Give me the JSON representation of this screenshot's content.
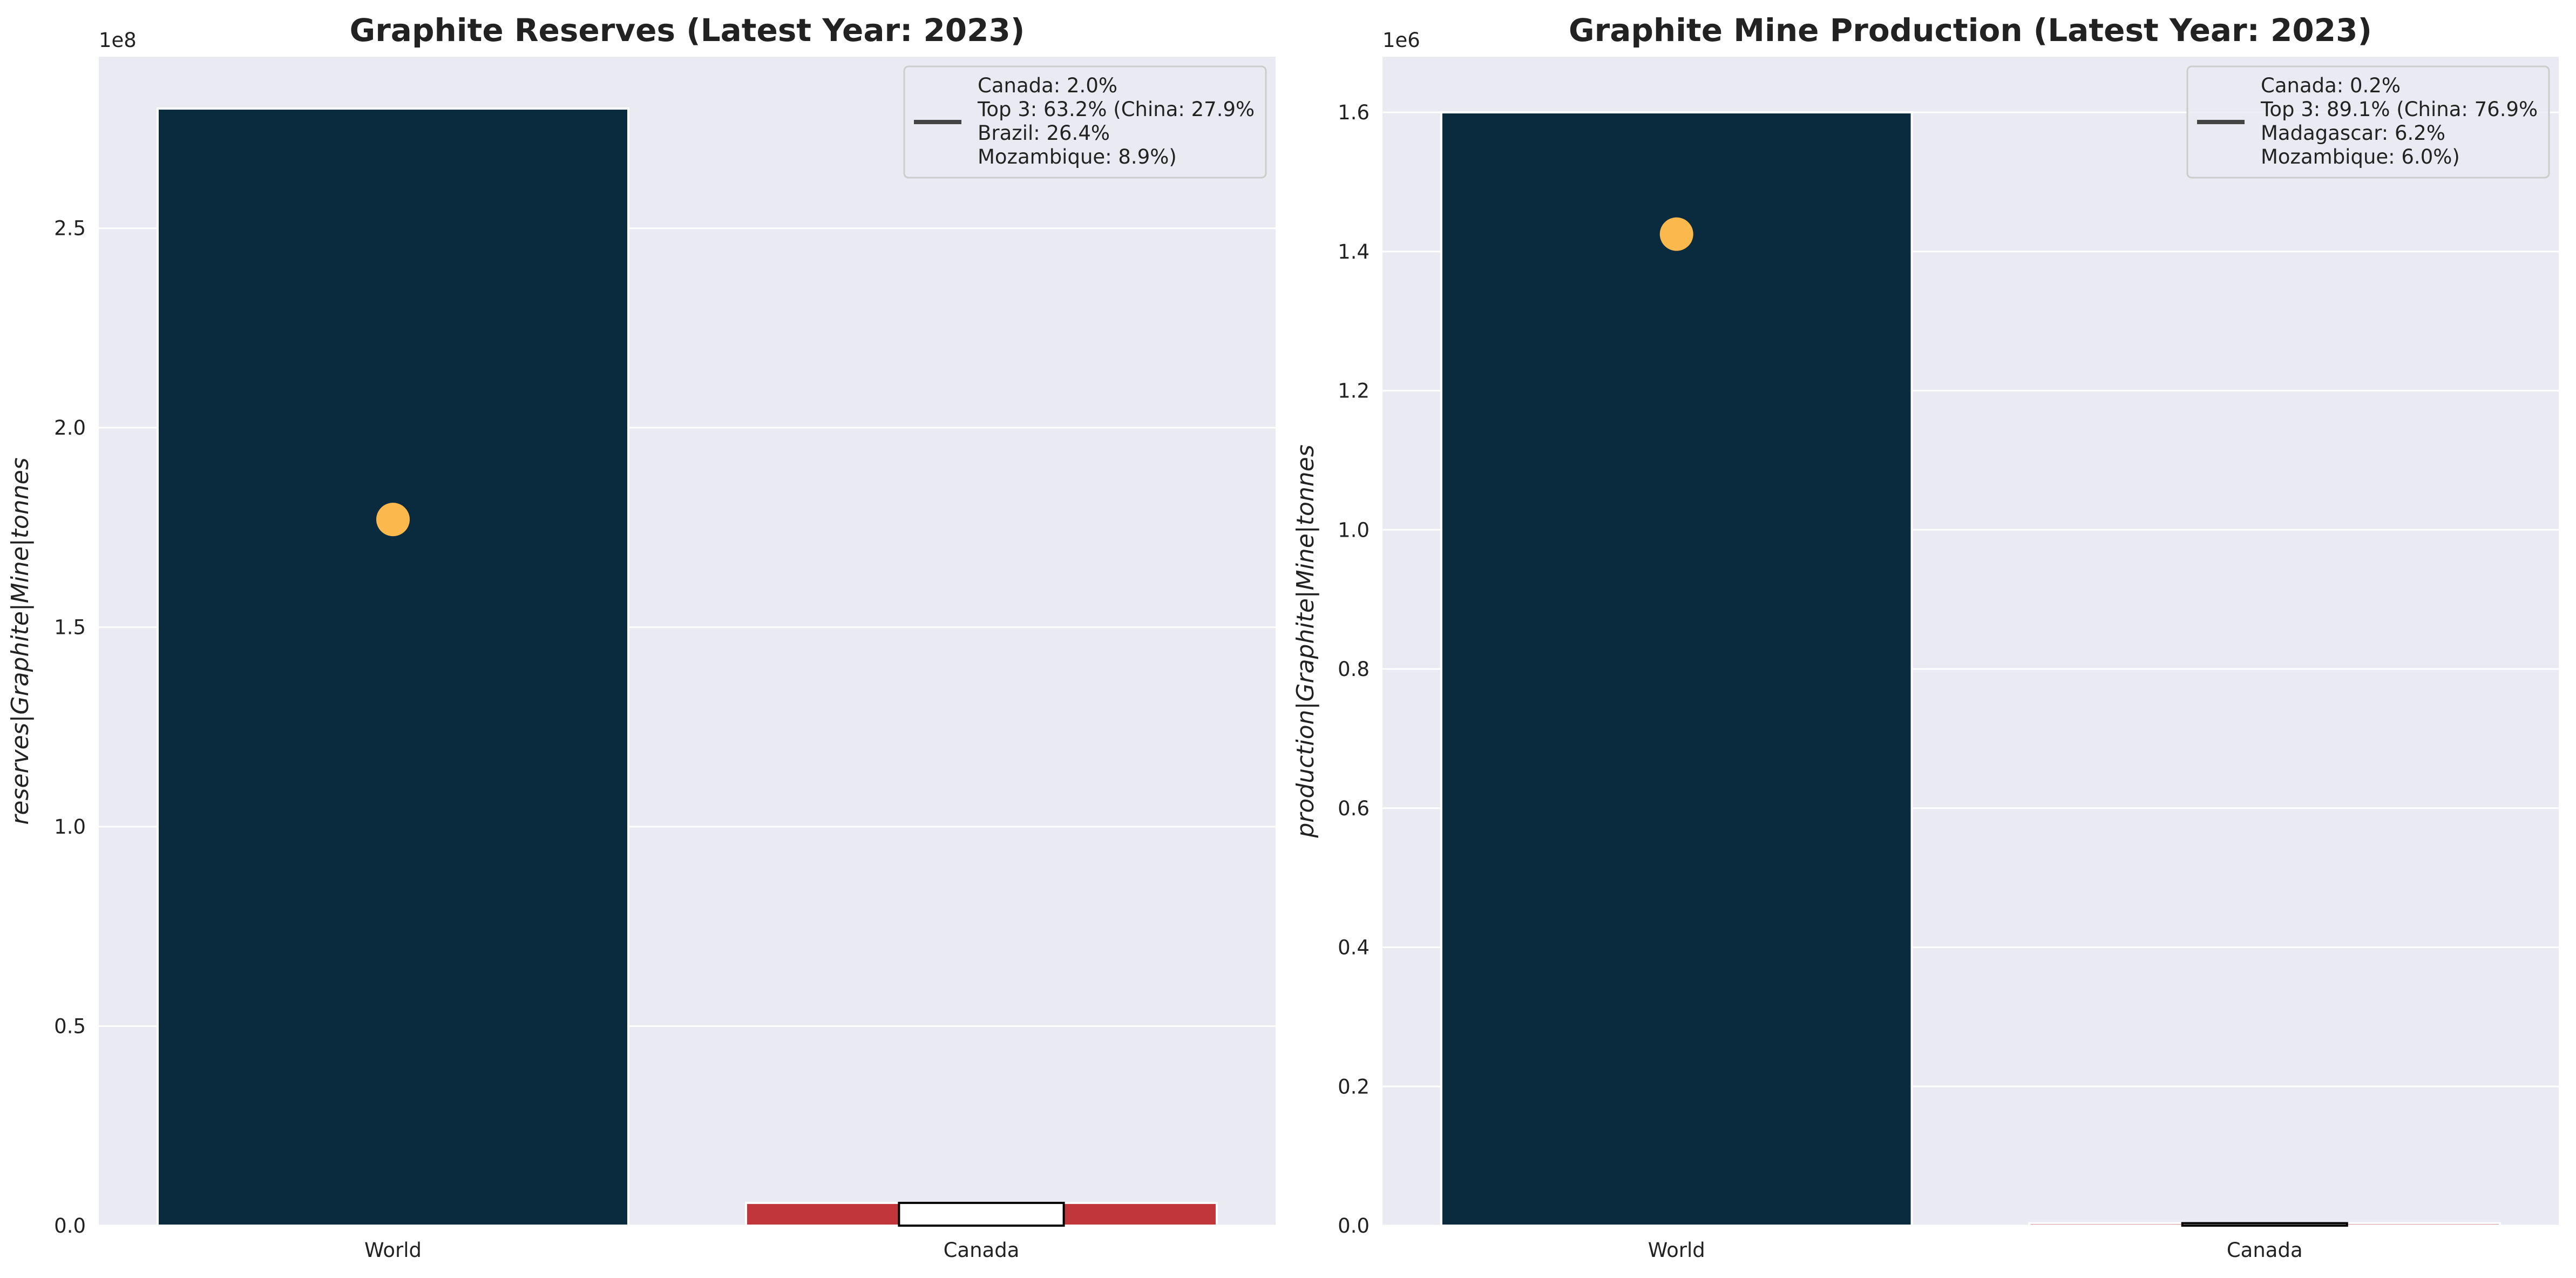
{
  "chart_data": [
    {
      "type": "bar",
      "title": "Graphite Reserves (Latest Year: 2023)",
      "xlabel": "",
      "ylabel": "reserves|Graphite|Mine|tonnes",
      "y_scale_label": "1e8",
      "ylim": [
        0,
        293000000
      ],
      "yticks": [
        0,
        50000000,
        100000000,
        150000000,
        200000000,
        250000000
      ],
      "ytick_labels": [
        "0.0",
        "0.5",
        "1.0",
        "1.5",
        "2.0",
        "2.5"
      ],
      "categories": [
        "World",
        "Canada"
      ],
      "values": [
        280000000,
        5700000
      ],
      "bar_colors": [
        "#0a2a3e",
        "#c0363a"
      ],
      "top3_marker": {
        "category": "World",
        "value": 177000000,
        "color": "#fbb84c"
      },
      "canada_inner_bar": {
        "value": 5700000,
        "fill": "#ffffff",
        "edge": "#000000"
      },
      "legend": {
        "position": "upper right",
        "lines": [
          "Canada: 2.0%",
          "Top 3: 63.2% (China: 27.9%",
          "Brazil: 26.4%",
          "Mozambique: 8.9%)"
        ]
      },
      "grid": true
    },
    {
      "type": "bar",
      "title": "Graphite Mine Production (Latest Year: 2023)",
      "xlabel": "",
      "ylabel": "production|Graphite|Mine|tonnes",
      "y_scale_label": "1e6",
      "ylim": [
        0,
        1680000
      ],
      "yticks": [
        0,
        200000,
        400000,
        600000,
        800000,
        1000000,
        1200000,
        1400000,
        1600000
      ],
      "ytick_labels": [
        "0.0",
        "0.2",
        "0.4",
        "0.6",
        "0.8",
        "1.0",
        "1.2",
        "1.4",
        "1.6"
      ],
      "categories": [
        "World",
        "Canada"
      ],
      "values": [
        1600000,
        3500
      ],
      "bar_colors": [
        "#0a2a3e",
        "#c0363a"
      ],
      "top3_marker": {
        "category": "World",
        "value": 1425000,
        "color": "#fbb84c"
      },
      "canada_inner_bar": {
        "value": 3500,
        "fill": "#ffffff",
        "edge": "#000000"
      },
      "legend": {
        "position": "upper right",
        "lines": [
          "Canada: 0.2%",
          "Top 3: 89.1% (China: 76.9%",
          "Madagascar: 6.2%",
          "Mozambique: 6.0%)"
        ]
      },
      "grid": true
    }
  ]
}
